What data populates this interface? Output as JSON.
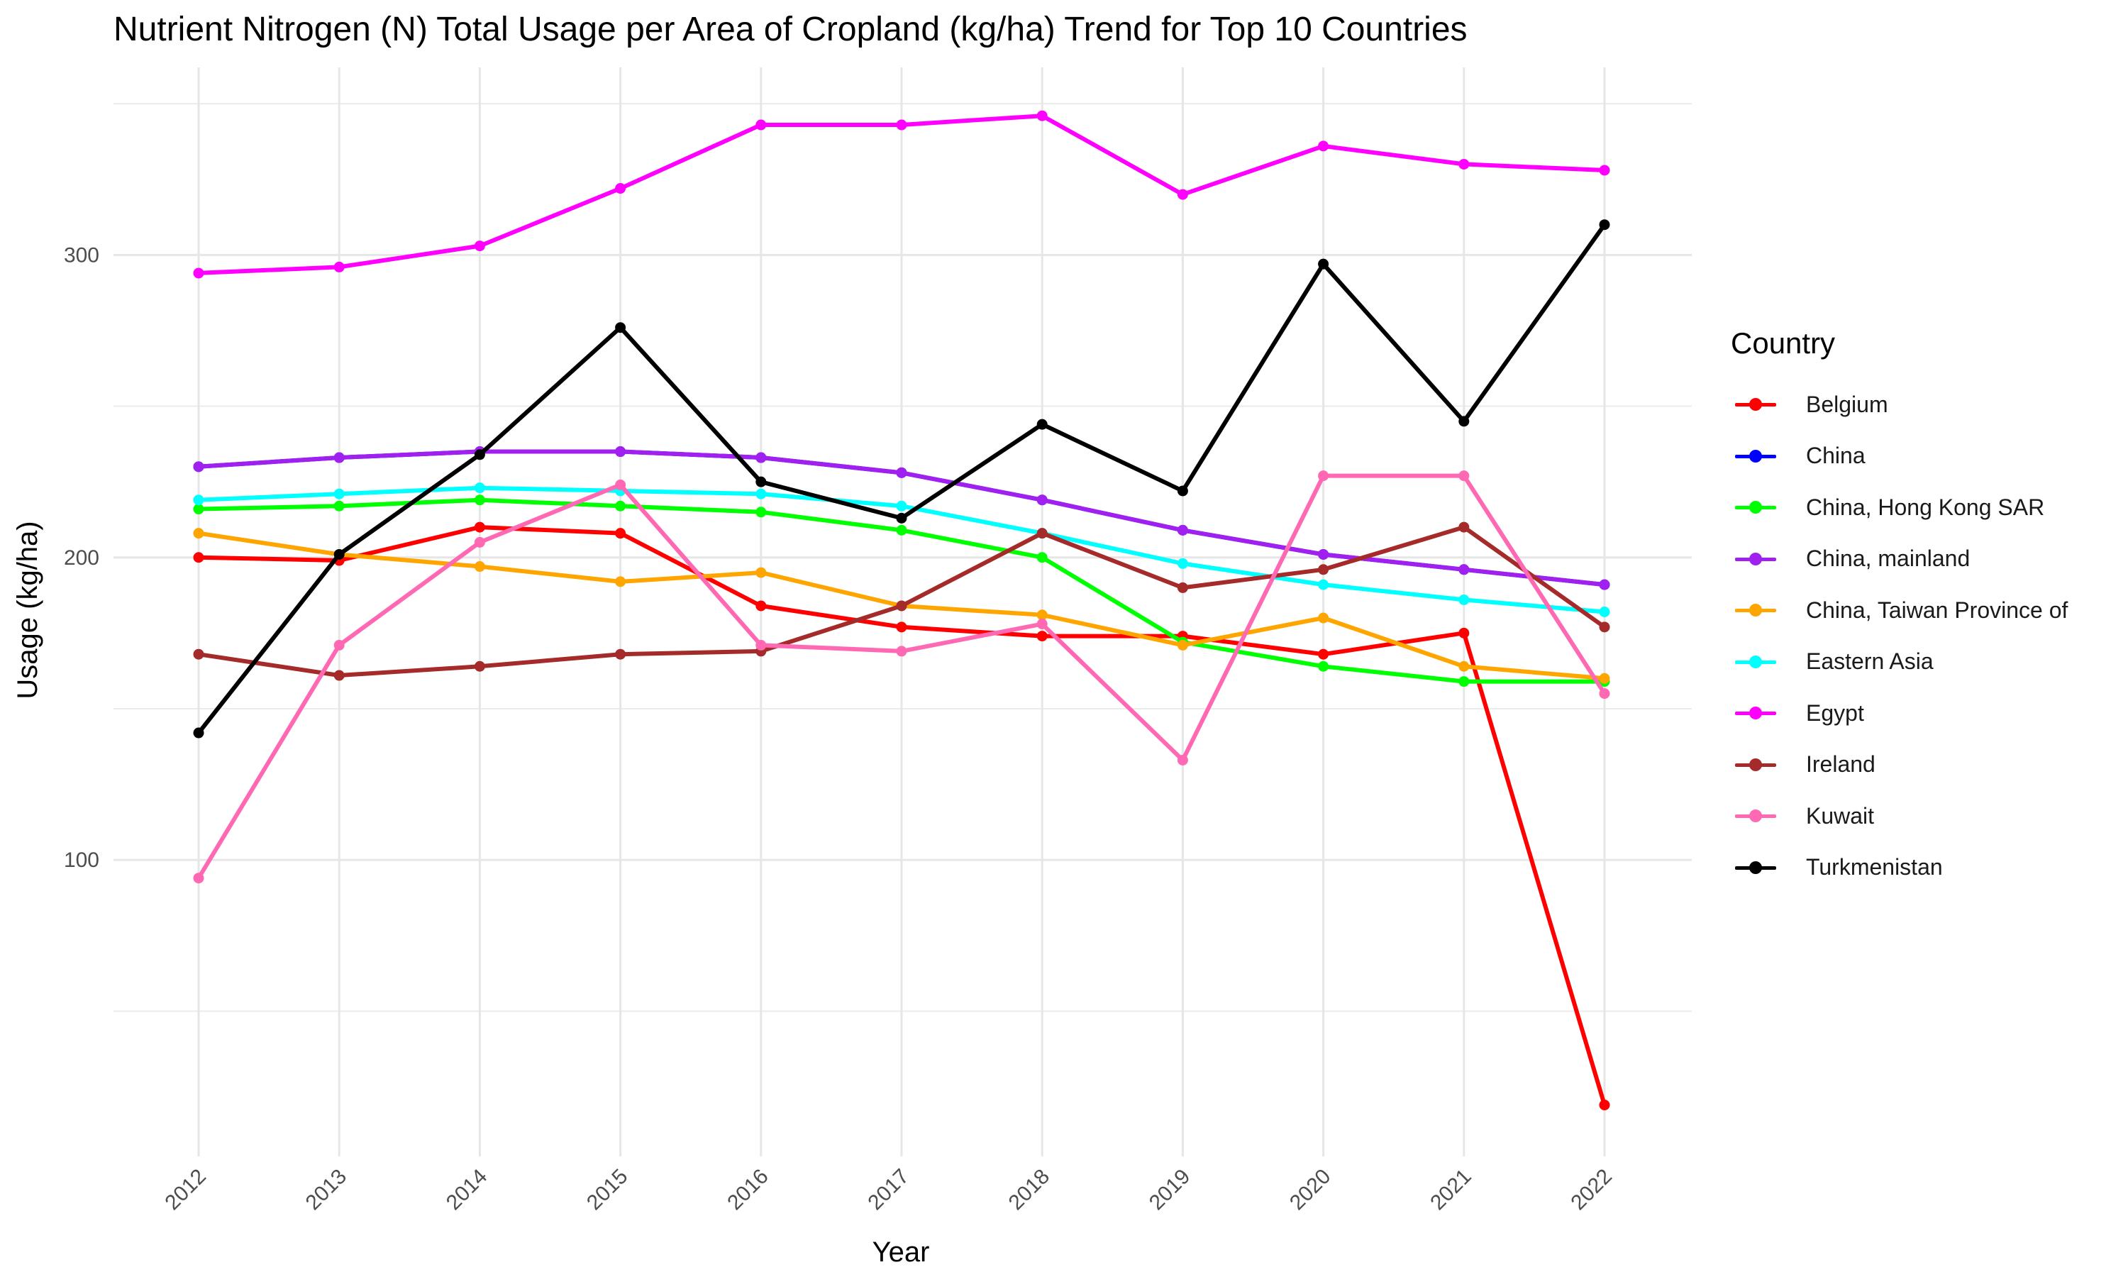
{
  "chart_data": {
    "type": "line",
    "title": "Nutrient Nitrogen (N) Total Usage per Area of Cropland (kg/ha) Trend for Top 10 Countries",
    "xlabel": "Year",
    "ylabel": "Usage (kg/ha)",
    "x": [
      "2012",
      "2013",
      "2014",
      "2015",
      "2016",
      "2017",
      "2018",
      "2019",
      "2020",
      "2021",
      "2022"
    ],
    "ylim": [
      2,
      362
    ],
    "yticks": [
      100,
      200,
      300
    ],
    "grid": true,
    "legend": {
      "title": "Country",
      "placement": "right"
    },
    "series": [
      {
        "name": "Belgium",
        "color": "#ff0000",
        "values": [
          200,
          199,
          210,
          208,
          184,
          177,
          174,
          174,
          168,
          175,
          19
        ]
      },
      {
        "name": "China",
        "color": "#0000ff",
        "values": [
          230,
          233,
          235,
          235,
          233,
          228,
          219,
          209,
          201,
          196,
          191
        ]
      },
      {
        "name": "China, Hong Kong SAR",
        "color": "#00ff00",
        "values": [
          216,
          217,
          219,
          217,
          215,
          209,
          200,
          172,
          164,
          159,
          159
        ]
      },
      {
        "name": "China, mainland",
        "color": "#a020f0",
        "values": [
          230,
          233,
          235,
          235,
          233,
          228,
          219,
          209,
          201,
          196,
          191
        ]
      },
      {
        "name": "China, Taiwan Province of",
        "color": "#ffa500",
        "values": [
          208,
          201,
          197,
          192,
          195,
          184,
          181,
          171,
          180,
          164,
          160
        ]
      },
      {
        "name": "Eastern Asia",
        "color": "#00ffff",
        "values": [
          219,
          221,
          223,
          222,
          221,
          217,
          208,
          198,
          191,
          186,
          182
        ]
      },
      {
        "name": "Egypt",
        "color": "#ff00ff",
        "values": [
          294,
          296,
          303,
          322,
          343,
          343,
          346,
          320,
          336,
          330,
          328
        ]
      },
      {
        "name": "Ireland",
        "color": "#a52a2a",
        "values": [
          168,
          161,
          164,
          168,
          169,
          184,
          208,
          190,
          196,
          210,
          177
        ]
      },
      {
        "name": "Kuwait",
        "color": "#ff69b4",
        "values": [
          94,
          171,
          205,
          224,
          171,
          169,
          178,
          133,
          227,
          227,
          155
        ]
      },
      {
        "name": "Turkmenistan",
        "color": "#000000",
        "values": [
          142,
          201,
          234,
          276,
          225,
          213,
          244,
          222,
          297,
          245,
          310
        ]
      }
    ]
  }
}
